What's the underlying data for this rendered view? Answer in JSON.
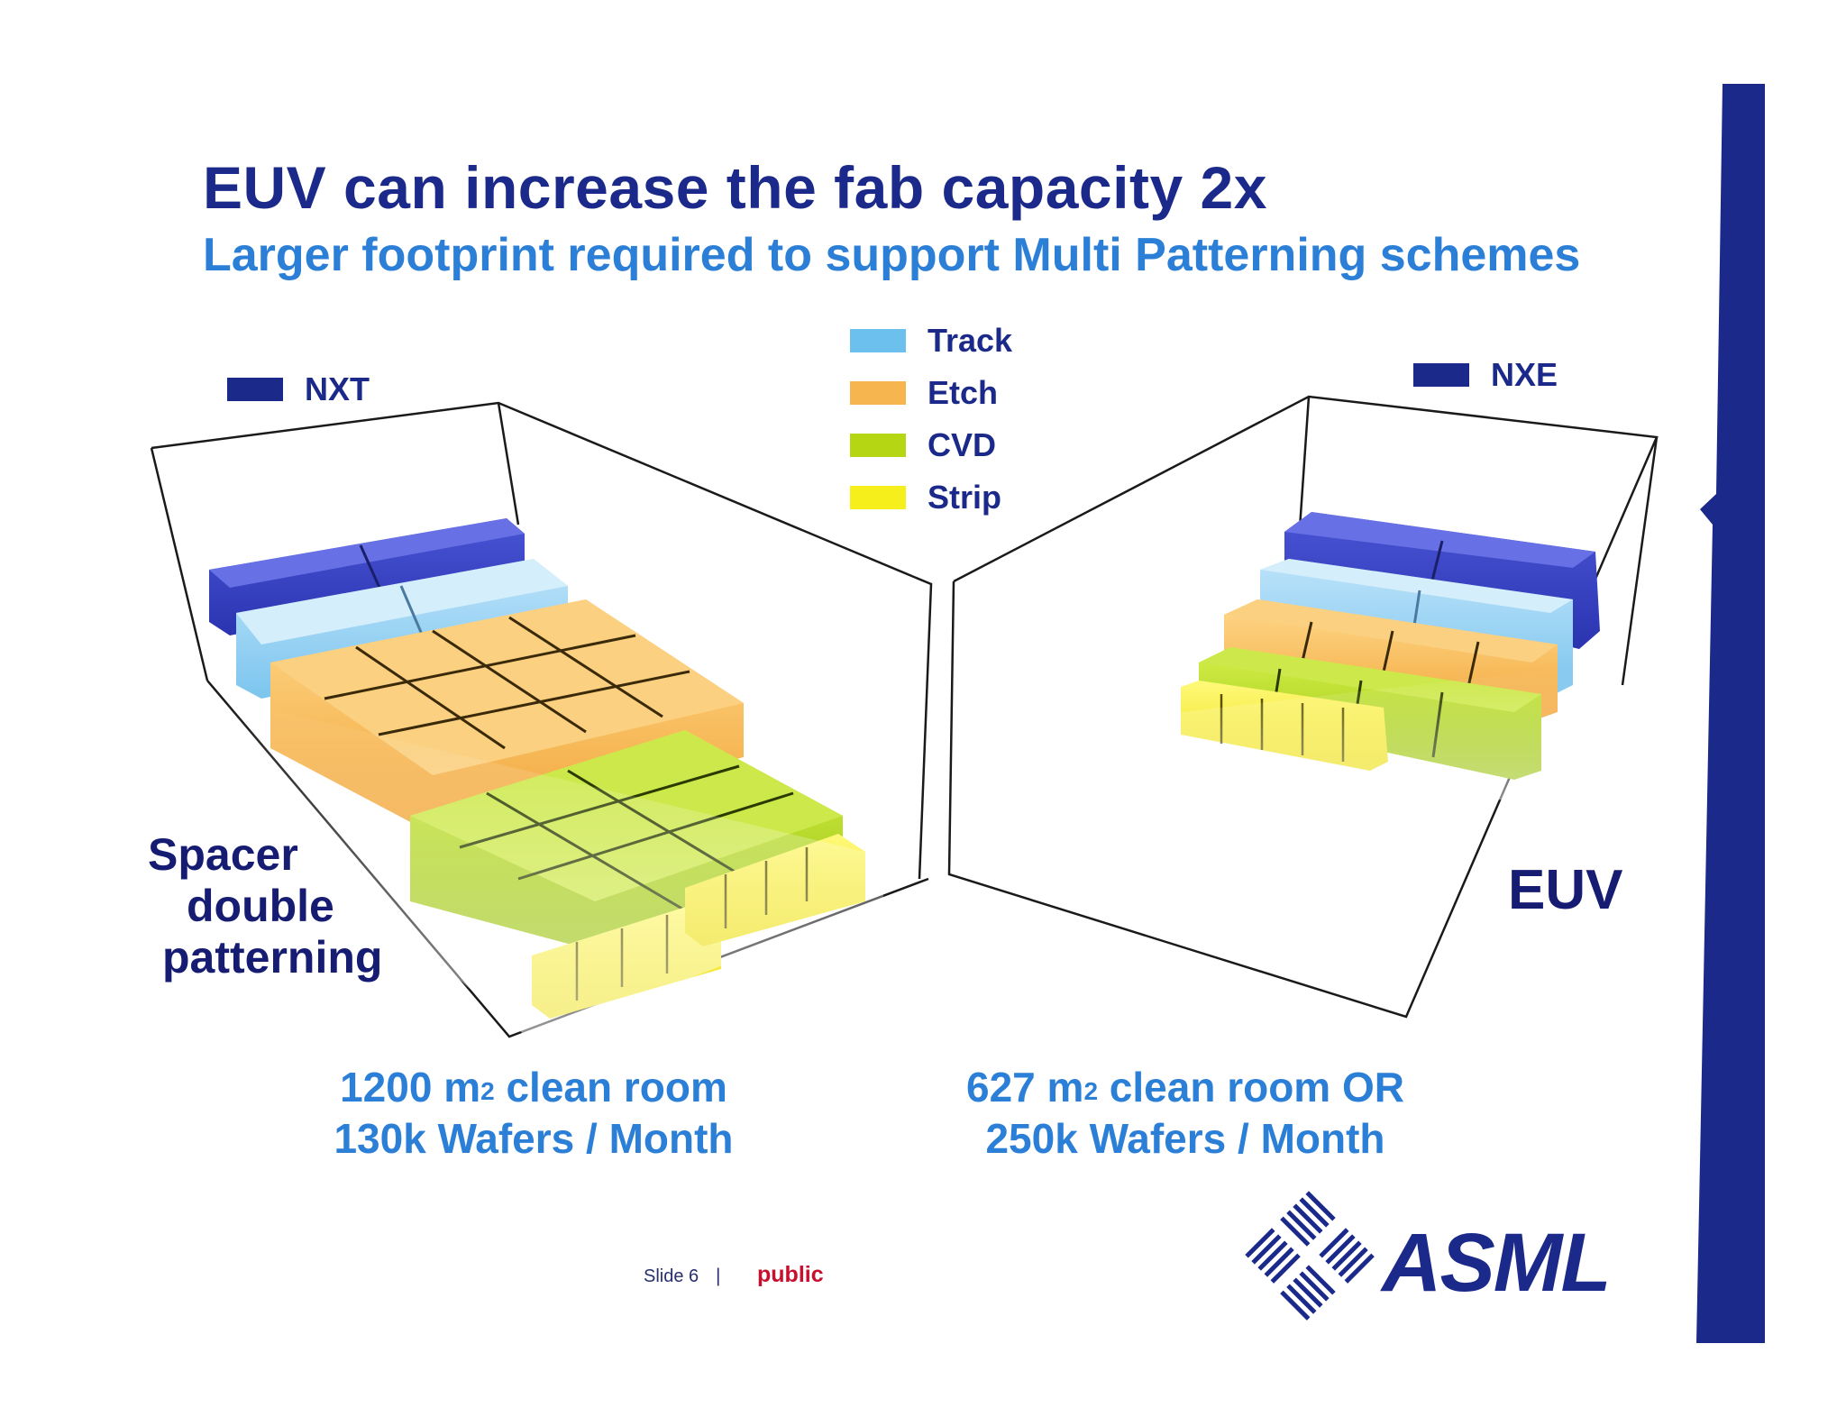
{
  "slide": {
    "title": "EUV can increase the fab capacity 2x",
    "subtitle": "Larger footprint required to support Multi Patterning schemes"
  },
  "legend": {
    "items": [
      {
        "label": "Track",
        "color": "#6cc0ee"
      },
      {
        "label": "Etch",
        "color": "#f7b54f"
      },
      {
        "label": "CVD",
        "color": "#b5d612"
      },
      {
        "label": "Strip",
        "color": "#f6ef1c"
      }
    ],
    "nxt": {
      "label": "NXT",
      "color": "#1b2a8a"
    },
    "nxe": {
      "label": "NXE",
      "color": "#1b2a8a"
    }
  },
  "left_panel": {
    "label_lines": [
      "Spacer",
      "double",
      "patterning"
    ],
    "caption_area_value": "1200 m",
    "caption_area_sup": "2",
    "caption_area_rest": " clean room",
    "caption_line2": "130k Wafers / Month"
  },
  "right_panel": {
    "label": "EUV",
    "caption_area_value": "627 m",
    "caption_area_sup": "2",
    "caption_area_rest": " clean room OR",
    "caption_line2": "250k Wafers / Month"
  },
  "footer": {
    "slide_text": "Slide 6",
    "separator": "|",
    "classification": "public"
  },
  "brand": {
    "name": "ASML",
    "color": "#1b2a8a"
  }
}
